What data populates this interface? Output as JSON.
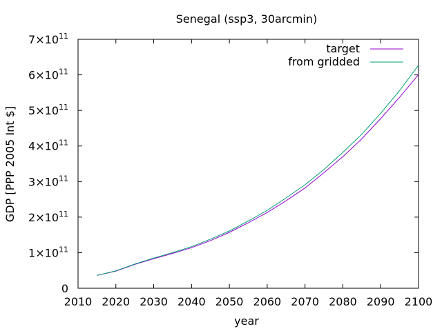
{
  "chart_data": {
    "type": "line",
    "title": "Senegal (ssp3, 30arcmin)",
    "xlabel": "year",
    "ylabel": "GDP [PPP 2005 Int $]",
    "xlim": [
      2010,
      2100
    ],
    "ylim": [
      0,
      700000000000
    ],
    "grid": false,
    "legend_position": "top-right",
    "x_ticks": [
      "2010",
      "2020",
      "2030",
      "2040",
      "2050",
      "2060",
      "2070",
      "2080",
      "2090",
      "2100"
    ],
    "y_ticks": [
      {
        "value": 0,
        "mantissa": "0",
        "exponent": ""
      },
      {
        "value": 100000000000,
        "mantissa": "1×10",
        "exponent": "11"
      },
      {
        "value": 200000000000,
        "mantissa": "2×10",
        "exponent": "11"
      },
      {
        "value": 300000000000,
        "mantissa": "3×10",
        "exponent": "11"
      },
      {
        "value": 400000000000,
        "mantissa": "4×10",
        "exponent": "11"
      },
      {
        "value": 500000000000,
        "mantissa": "5×10",
        "exponent": "11"
      },
      {
        "value": 600000000000,
        "mantissa": "6×10",
        "exponent": "11"
      },
      {
        "value": 700000000000,
        "mantissa": "7×10",
        "exponent": "11"
      }
    ],
    "x": [
      2015,
      2020,
      2025,
      2030,
      2035,
      2040,
      2045,
      2050,
      2055,
      2060,
      2065,
      2070,
      2075,
      2080,
      2085,
      2090,
      2095,
      2100
    ],
    "series": [
      {
        "name": "target",
        "color": "#9400d3",
        "values": [
          36000000000,
          48000000000,
          67000000000,
          83000000000,
          98000000000,
          114000000000,
          134000000000,
          157000000000,
          184000000000,
          213000000000,
          246000000000,
          282000000000,
          325000000000,
          370000000000,
          420000000000,
          477000000000,
          537000000000,
          601000000000
        ]
      },
      {
        "name": "from gridded",
        "color": "#009e73",
        "values": [
          36000000000,
          49000000000,
          68000000000,
          85000000000,
          100000000000,
          117000000000,
          138000000000,
          161000000000,
          189000000000,
          219000000000,
          254000000000,
          291000000000,
          334000000000,
          382000000000,
          433000000000,
          492000000000,
          556000000000,
          627000000000
        ]
      }
    ]
  }
}
